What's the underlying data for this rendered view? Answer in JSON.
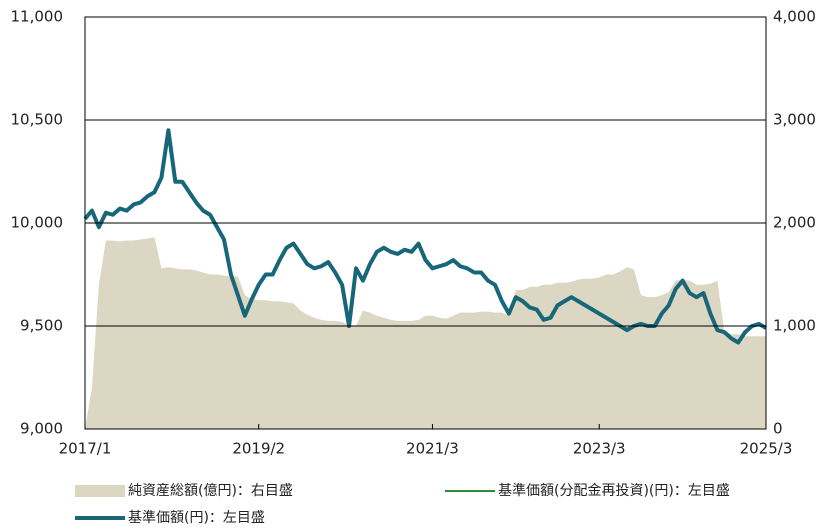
{
  "chart_data": {
    "type": "line",
    "categories": [
      "2017/1",
      null,
      null,
      null,
      null,
      null,
      null,
      null,
      null,
      null,
      null,
      null,
      null,
      null,
      null,
      null,
      null,
      null,
      null,
      null,
      null,
      null,
      null,
      null,
      null,
      "2019/2",
      null,
      null,
      null,
      null,
      null,
      null,
      null,
      null,
      null,
      null,
      null,
      null,
      null,
      null,
      null,
      null,
      null,
      null,
      null,
      null,
      null,
      null,
      null,
      null,
      "2021/3",
      null,
      null,
      null,
      null,
      null,
      null,
      null,
      null,
      null,
      null,
      null,
      null,
      null,
      null,
      null,
      null,
      null,
      null,
      null,
      null,
      null,
      null,
      null,
      "2023/3",
      null,
      null,
      null,
      null,
      null,
      null,
      null,
      null,
      null,
      null,
      null,
      null,
      null,
      null,
      null,
      null,
      null,
      null,
      null,
      null,
      null,
      null,
      null,
      "2025/3"
    ],
    "series": [
      {
        "name": "純資産総額(億円)：右目盛",
        "type": "area",
        "axis": "y2",
        "color": "#dbd7c3",
        "values": [
          0,
          400,
          1400,
          1830,
          1830,
          1820,
          1830,
          1830,
          1840,
          1850,
          1860,
          1560,
          1570,
          1560,
          1550,
          1550,
          1540,
          1520,
          1500,
          1500,
          1490,
          1480,
          1480,
          1300,
          1260,
          1250,
          1250,
          1240,
          1240,
          1230,
          1220,
          1150,
          1110,
          1080,
          1060,
          1050,
          1050,
          1040,
          1000,
          1000,
          1150,
          1130,
          1100,
          1080,
          1060,
          1050,
          1050,
          1050,
          1060,
          1100,
          1100,
          1080,
          1070,
          1100,
          1130,
          1130,
          1130,
          1140,
          1140,
          1130,
          1130,
          1100,
          1350,
          1350,
          1380,
          1380,
          1400,
          1400,
          1420,
          1420,
          1430,
          1450,
          1460,
          1460,
          1470,
          1500,
          1500,
          1530,
          1570,
          1550,
          1300,
          1280,
          1280,
          1300,
          1330,
          1440,
          1450,
          1440,
          1400,
          1400,
          1410,
          1440,
          950,
          920,
          920,
          900,
          900,
          900,
          900
        ]
      },
      {
        "name": "基準価額(分配金再投資)(円)：左目盛",
        "type": "line",
        "color": "#2e8b3a",
        "values": [
          10020,
          10060,
          9980,
          10050,
          10040,
          10070,
          10060,
          10090,
          10100,
          10130,
          10150,
          10220,
          10450,
          10200,
          10200,
          10150,
          10100,
          10060,
          10040,
          9980,
          9920,
          9750,
          9650,
          9550,
          9630,
          9700,
          9750,
          9750,
          9820,
          9880,
          9900,
          9850,
          9800,
          9780,
          9790,
          9810,
          9760,
          9700,
          9500,
          9780,
          9720,
          9800,
          9860,
          9880,
          9860,
          9850,
          9870,
          9860,
          9900,
          9820,
          9780,
          9790,
          9800,
          9820,
          9790,
          9780,
          9760,
          9760,
          9720,
          9700,
          9620,
          9560,
          9640,
          9620,
          9590,
          9580,
          9530,
          9540,
          9600,
          9620,
          9640,
          9620,
          9600,
          9580,
          9560,
          9540,
          9520,
          9500,
          9480,
          9500,
          9510,
          9500,
          9500,
          9560,
          9600,
          9680,
          9720,
          9660,
          9640,
          9660,
          9560,
          9480,
          9470,
          9440,
          9420,
          9470,
          9500,
          9510,
          9490
        ]
      },
      {
        "name": "基準価額(円)：左目盛",
        "type": "line",
        "color": "#17667a",
        "values": [
          10020,
          10060,
          9980,
          10050,
          10040,
          10070,
          10060,
          10090,
          10100,
          10130,
          10150,
          10220,
          10450,
          10200,
          10200,
          10150,
          10100,
          10060,
          10040,
          9980,
          9920,
          9750,
          9650,
          9550,
          9630,
          9700,
          9750,
          9750,
          9820,
          9880,
          9900,
          9850,
          9800,
          9780,
          9790,
          9810,
          9760,
          9700,
          9500,
          9780,
          9720,
          9800,
          9860,
          9880,
          9860,
          9850,
          9870,
          9860,
          9900,
          9820,
          9780,
          9790,
          9800,
          9820,
          9790,
          9780,
          9760,
          9760,
          9720,
          9700,
          9620,
          9560,
          9640,
          9620,
          9590,
          9580,
          9530,
          9540,
          9600,
          9620,
          9640,
          9620,
          9600,
          9580,
          9560,
          9540,
          9520,
          9500,
          9480,
          9500,
          9510,
          9500,
          9500,
          9560,
          9600,
          9680,
          9720,
          9660,
          9640,
          9660,
          9560,
          9480,
          9470,
          9440,
          9420,
          9470,
          9500,
          9510,
          9490
        ]
      }
    ],
    "ylim": [
      9000,
      11000
    ],
    "yticks": [
      {
        "value": 9000,
        "label": "9,000"
      },
      {
        "value": 9500,
        "label": "9,500"
      },
      {
        "value": 10000,
        "label": "10,000"
      },
      {
        "value": 10500,
        "label": "10,500"
      },
      {
        "value": 11000,
        "label": "11,000"
      }
    ],
    "y2lim": [
      0,
      4000
    ],
    "y2ticks": [
      0,
      {
        "value": 1000,
        "label": "1,000"
      },
      {
        "value": 2000,
        "label": "2,000"
      },
      {
        "value": 3000,
        "label": "3,000"
      },
      {
        "value": 4000,
        "label": "4,000"
      }
    ],
    "grid": true,
    "legend": "bottom"
  }
}
